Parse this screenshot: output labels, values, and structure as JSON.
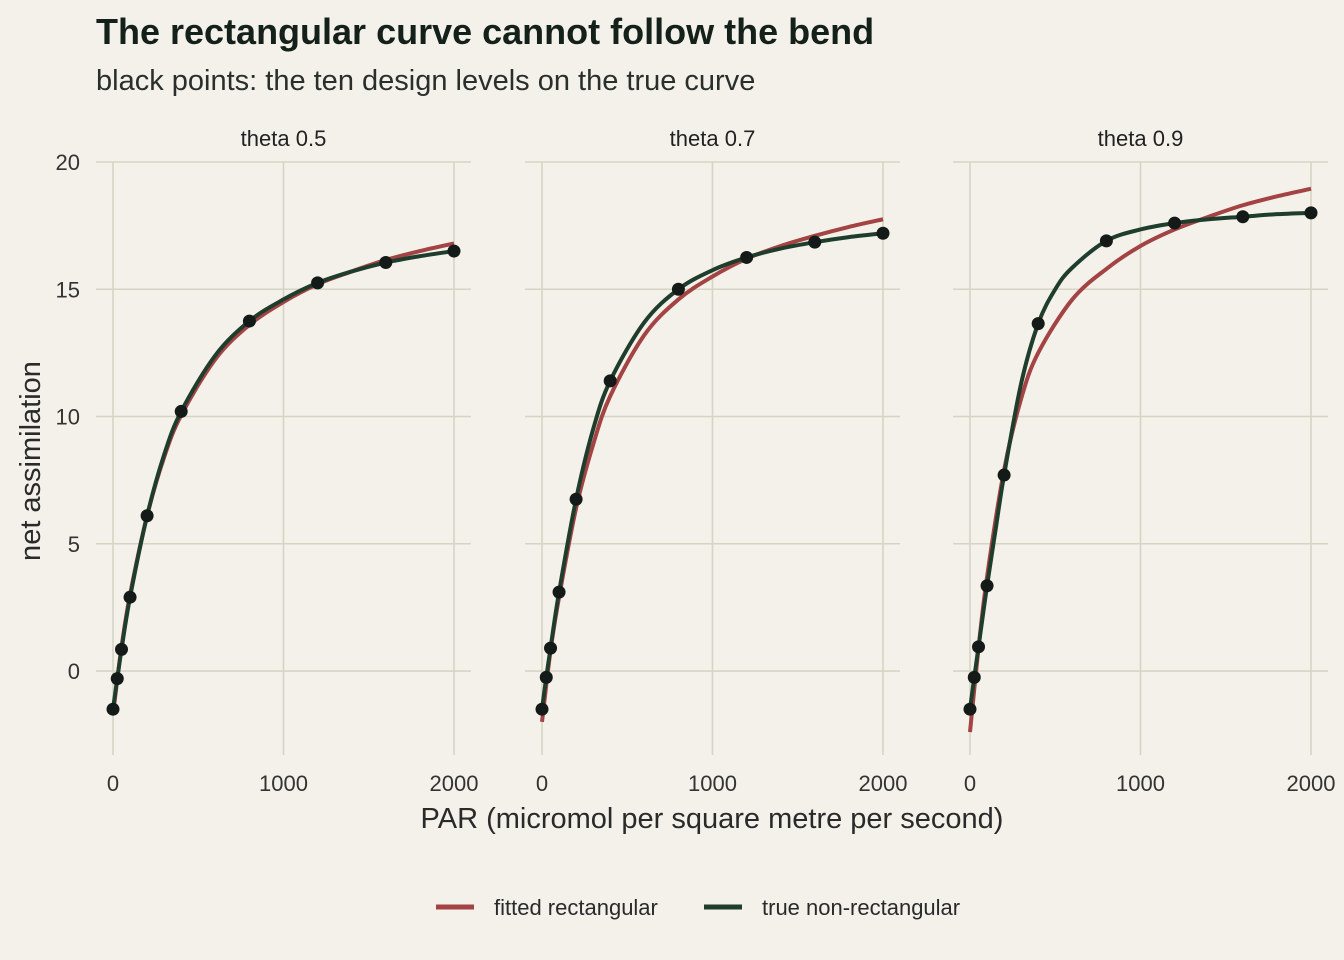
{
  "title": "The rectangular curve cannot follow the bend",
  "subtitle": "black points: the ten design levels on the true curve",
  "colors": {
    "background": "#f3f1ea",
    "fitted": "#a34343",
    "true": "#1f3d2c",
    "points": "#141a17",
    "grid": "#d6d5c4"
  },
  "chart_data": {
    "type": "line",
    "xlabel": "PAR (micromol per square metre per second)",
    "ylabel": "net assimilation",
    "xlim": [
      0,
      2000
    ],
    "ylim": [
      -3.3,
      20
    ],
    "x_ticks": [
      0,
      1000,
      2000
    ],
    "y_ticks": [
      0,
      5,
      10,
      15,
      20
    ],
    "grid": true,
    "legend_position": "bottom",
    "legend": [
      {
        "label": "fitted rectangular",
        "color": "#a34343"
      },
      {
        "label": "true non-rectangular",
        "color": "#1f3d2c"
      }
    ],
    "design_levels": [
      0,
      25,
      50,
      100,
      200,
      400,
      800,
      1200,
      1600,
      2000
    ],
    "panels": [
      {
        "label": "theta 0.5",
        "points": [
          [
            0,
            -1.5
          ],
          [
            25,
            -0.3
          ],
          [
            50,
            0.85
          ],
          [
            100,
            2.9
          ],
          [
            200,
            6.1
          ],
          [
            400,
            10.2
          ],
          [
            800,
            13.75
          ],
          [
            1200,
            15.25
          ],
          [
            1600,
            16.05
          ],
          [
            2000,
            16.5
          ]
        ],
        "true_curve": [
          [
            0,
            -1.5
          ],
          [
            25,
            -0.3
          ],
          [
            50,
            0.85
          ],
          [
            100,
            2.9
          ],
          [
            200,
            6.1
          ],
          [
            300,
            8.5
          ],
          [
            400,
            10.2
          ],
          [
            600,
            12.4
          ],
          [
            800,
            13.75
          ],
          [
            1000,
            14.6
          ],
          [
            1200,
            15.25
          ],
          [
            1400,
            15.7
          ],
          [
            1600,
            16.05
          ],
          [
            1800,
            16.3
          ],
          [
            2000,
            16.5
          ]
        ],
        "fitted_curve": [
          [
            0,
            -1.7
          ],
          [
            50,
            0.95
          ],
          [
            100,
            3.0
          ],
          [
            200,
            6.1
          ],
          [
            300,
            8.4
          ],
          [
            400,
            10.05
          ],
          [
            600,
            12.25
          ],
          [
            800,
            13.6
          ],
          [
            1000,
            14.5
          ],
          [
            1200,
            15.2
          ],
          [
            1400,
            15.7
          ],
          [
            1600,
            16.15
          ],
          [
            1800,
            16.5
          ],
          [
            2000,
            16.8
          ]
        ]
      },
      {
        "label": "theta 0.7",
        "points": [
          [
            0,
            -1.5
          ],
          [
            25,
            -0.25
          ],
          [
            50,
            0.9
          ],
          [
            100,
            3.1
          ],
          [
            200,
            6.75
          ],
          [
            400,
            11.4
          ],
          [
            800,
            15.0
          ],
          [
            1200,
            16.25
          ],
          [
            1600,
            16.85
          ],
          [
            2000,
            17.2
          ]
        ],
        "true_curve": [
          [
            0,
            -1.5
          ],
          [
            25,
            -0.25
          ],
          [
            50,
            0.9
          ],
          [
            100,
            3.1
          ],
          [
            200,
            6.75
          ],
          [
            300,
            9.5
          ],
          [
            400,
            11.4
          ],
          [
            600,
            13.7
          ],
          [
            800,
            15.0
          ],
          [
            1000,
            15.75
          ],
          [
            1200,
            16.25
          ],
          [
            1400,
            16.6
          ],
          [
            1600,
            16.85
          ],
          [
            1800,
            17.05
          ],
          [
            2000,
            17.2
          ]
        ],
        "fitted_curve": [
          [
            0,
            -2.0
          ],
          [
            50,
            0.8
          ],
          [
            100,
            2.9
          ],
          [
            200,
            6.4
          ],
          [
            300,
            8.9
          ],
          [
            400,
            10.8
          ],
          [
            600,
            13.2
          ],
          [
            800,
            14.6
          ],
          [
            1000,
            15.5
          ],
          [
            1200,
            16.2
          ],
          [
            1400,
            16.7
          ],
          [
            1600,
            17.1
          ],
          [
            1800,
            17.45
          ],
          [
            2000,
            17.75
          ]
        ]
      },
      {
        "label": "theta 0.9",
        "points": [
          [
            0,
            -1.5
          ],
          [
            25,
            -0.25
          ],
          [
            50,
            0.95
          ],
          [
            100,
            3.35
          ],
          [
            200,
            7.7
          ],
          [
            400,
            13.65
          ],
          [
            800,
            16.9
          ],
          [
            1200,
            17.6
          ],
          [
            1600,
            17.85
          ],
          [
            2000,
            18.0
          ]
        ],
        "true_curve": [
          [
            0,
            -1.5
          ],
          [
            25,
            -0.25
          ],
          [
            50,
            0.95
          ],
          [
            100,
            3.35
          ],
          [
            150,
            5.55
          ],
          [
            200,
            7.7
          ],
          [
            300,
            11.3
          ],
          [
            400,
            13.65
          ],
          [
            500,
            15.0
          ],
          [
            600,
            15.85
          ],
          [
            800,
            16.9
          ],
          [
            1000,
            17.35
          ],
          [
            1200,
            17.6
          ],
          [
            1400,
            17.75
          ],
          [
            1600,
            17.85
          ],
          [
            1800,
            17.95
          ],
          [
            2000,
            18.0
          ]
        ],
        "fitted_curve": [
          [
            0,
            -2.4
          ],
          [
            50,
            0.9
          ],
          [
            100,
            3.7
          ],
          [
            200,
            7.9
          ],
          [
            300,
            10.7
          ],
          [
            400,
            12.5
          ],
          [
            600,
            14.6
          ],
          [
            800,
            15.8
          ],
          [
            1000,
            16.7
          ],
          [
            1200,
            17.35
          ],
          [
            1400,
            17.85
          ],
          [
            1600,
            18.3
          ],
          [
            1800,
            18.65
          ],
          [
            2000,
            18.95
          ]
        ]
      }
    ]
  }
}
